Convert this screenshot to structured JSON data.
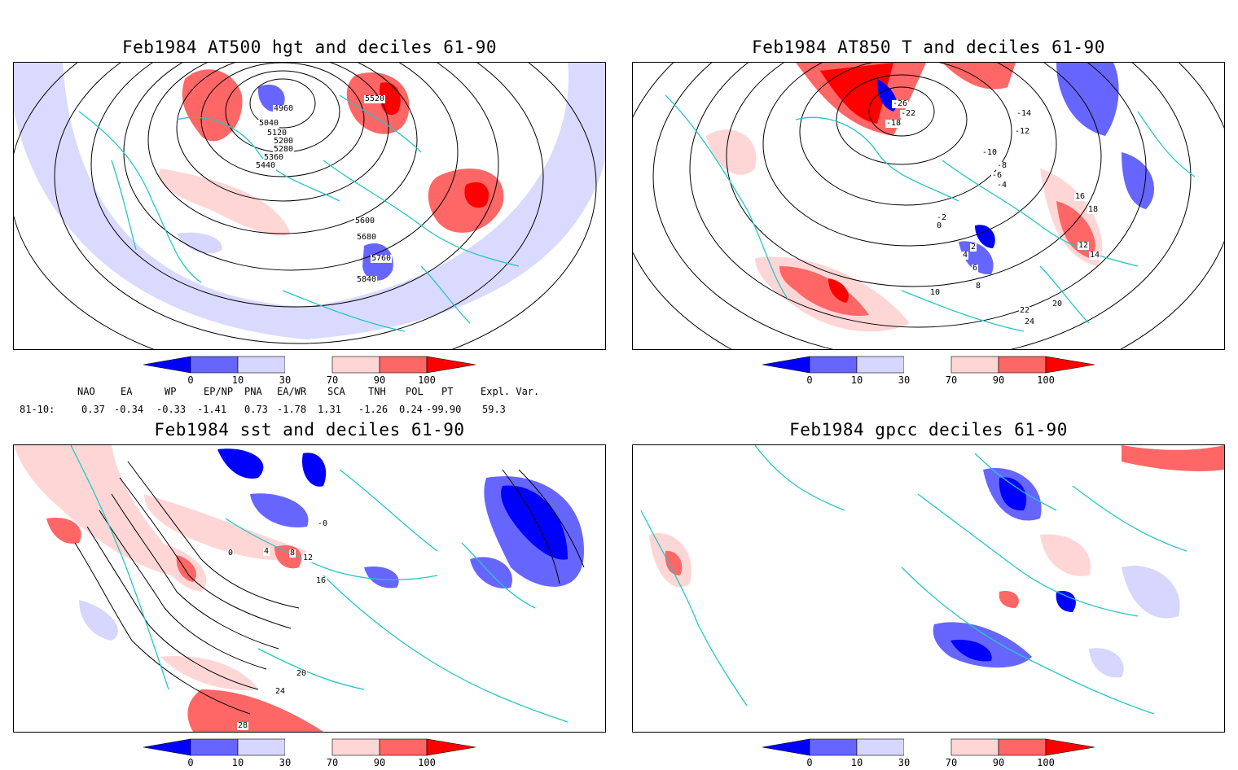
{
  "panels": [
    {
      "title": "Feb1984 AT500 hgt and deciles 61-90",
      "contours": [
        "4960",
        "5040",
        "5120",
        "5200",
        "5280",
        "5360",
        "5440",
        "5520",
        "5600",
        "5680",
        "5760",
        "5840"
      ]
    },
    {
      "title": "Feb1984 AT850 T and deciles 61-90",
      "contours": [
        "-26",
        "-22",
        "-18",
        "-14",
        "-12",
        "-10",
        "-8",
        "-6",
        "-4",
        "-2",
        "0",
        "2",
        "4",
        "6",
        "8",
        "10",
        "12",
        "14",
        "16",
        "18",
        "20",
        "22",
        "24"
      ]
    },
    {
      "title": "Feb1984 sst and deciles 61-90",
      "contours": [
        "-0",
        "0",
        "4",
        "8",
        "12",
        "16",
        "20",
        "24",
        "28"
      ]
    },
    {
      "title": "Feb1984 gpcc deciles 61-90",
      "contours": []
    }
  ],
  "colorbar": {
    "tick_labels": [
      "0",
      "10",
      "30",
      "70",
      "90",
      "100"
    ],
    "colors": [
      "#0000ff",
      "#6666ff",
      "#d6d6ff",
      "#ffffff",
      "#ffd6d6",
      "#ff6666",
      "#ff0000"
    ]
  },
  "indices": {
    "row_label": "81-10:",
    "headers": [
      "NAO",
      "EA",
      "WP",
      "EP/NP",
      "PNA",
      "EA/WR",
      "SCA",
      "TNH",
      "POL",
      "PT",
      "Expl. Var."
    ],
    "values": [
      "0.37",
      "-0.34",
      "-0.33",
      "-1.41",
      "0.73",
      "-1.78",
      "1.31",
      "-1.26",
      "0.24",
      "-99.90",
      "59.3"
    ]
  },
  "colors": {
    "coastline": "#26c6c6",
    "frame": "#000000"
  }
}
